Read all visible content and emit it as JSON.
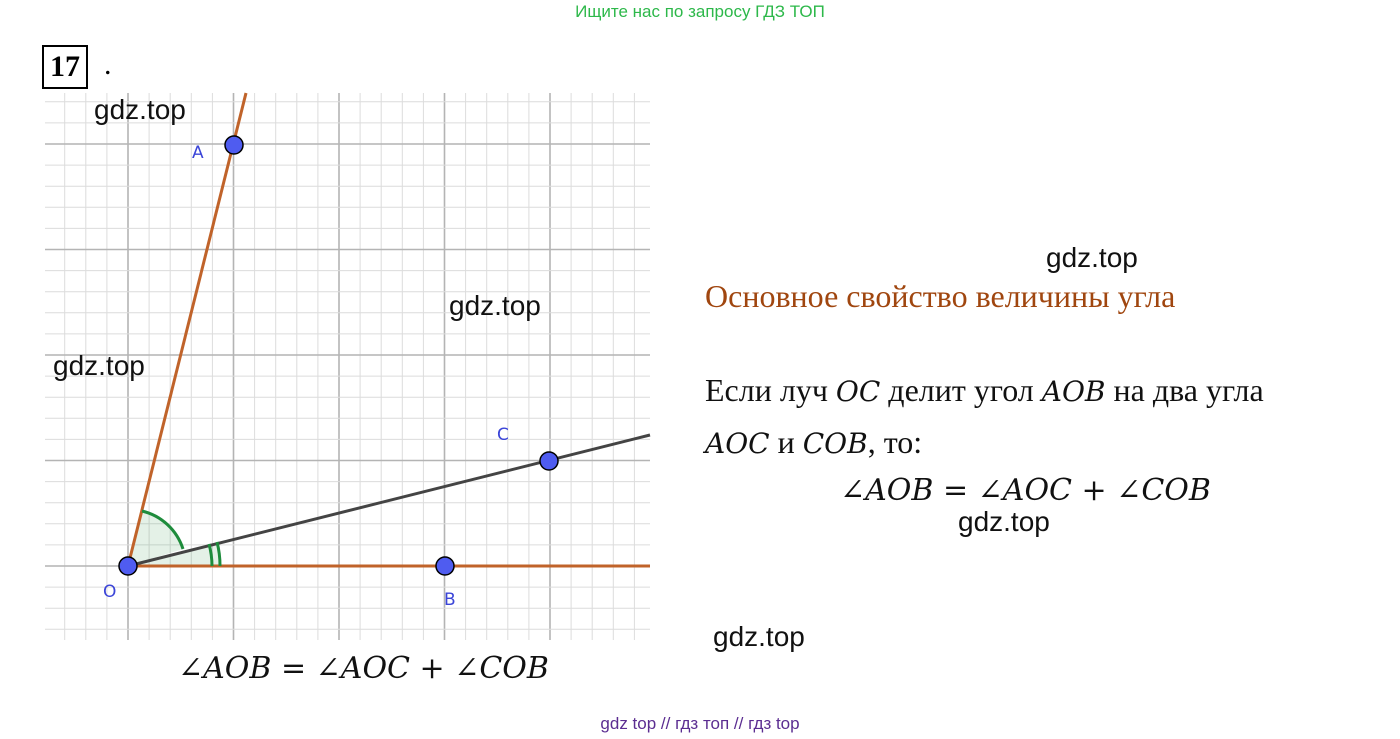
{
  "banner": "Ищите нас по запросу ГДЗ ТОП",
  "task_number": "17",
  "task_dot": ".",
  "watermarks": [
    "gdz.top",
    "gdz.top",
    "gdz.top",
    "gdz.top",
    "gdz.top",
    "gdz.top"
  ],
  "figure": {
    "points": {
      "A": "A",
      "B": "B",
      "C": "C",
      "O": "O"
    },
    "colors": {
      "grid_major": "#b4b4b4",
      "grid_minor": "#dcdcdc",
      "ray_orange": "#c0632a",
      "ray_gray": "#444444",
      "angle_green": "#1e8c3c",
      "point_fill": "#4f5cf0",
      "label_blue": "#3b45d8"
    },
    "caption": "∠AOB = ∠AOC + ∠COB"
  },
  "theory": {
    "title": "Основное свойство величины угла",
    "line1_prefix": "Если луч ",
    "line1_oc": "OC",
    "line1_mid": " делит угол ",
    "line1_aob": "AOB",
    "line1_suffix": " на два угла",
    "line2_aoc": "AOC",
    "line2_mid": " и ",
    "line2_cob": "COB",
    "line2_suffix": ", то:",
    "formula": "∠AOB = ∠AOC + ∠COB"
  },
  "footer": "gdz top  //  гдз топ  //  гдз top"
}
